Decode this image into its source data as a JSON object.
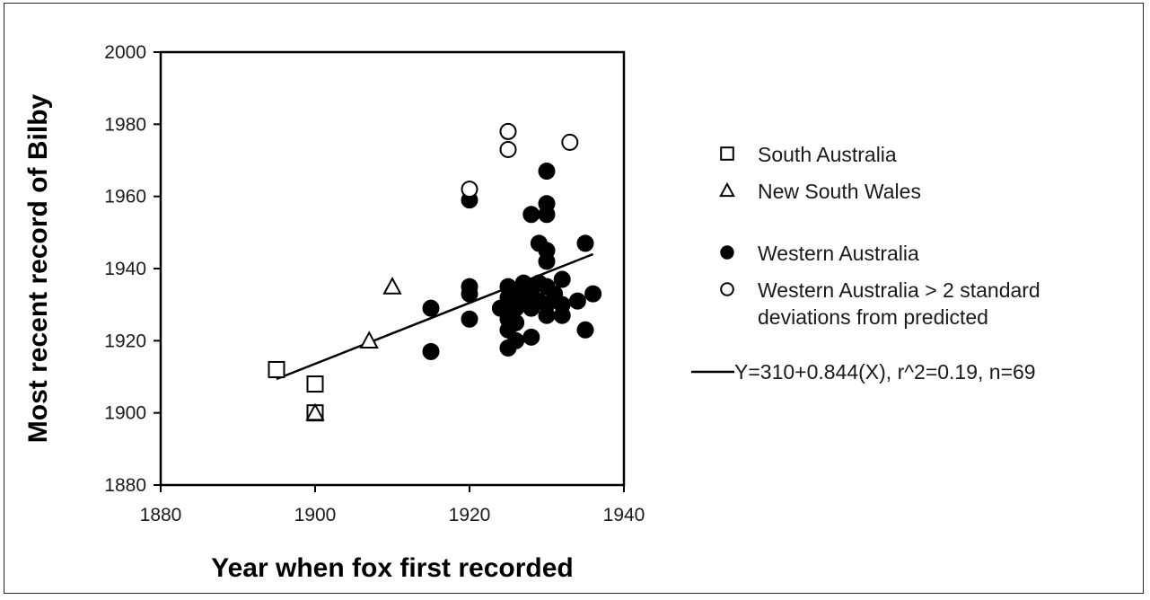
{
  "chart_data": {
    "type": "scatter",
    "xlabel": "Year when fox first recorded",
    "ylabel": "Most recent record of Bilby",
    "xlim": [
      1880,
      1940
    ],
    "ylim": [
      1880,
      2000
    ],
    "xticks": [
      "1880",
      "1900",
      "1920",
      "1940"
    ],
    "yticks": [
      "1880",
      "1900",
      "1920",
      "1940",
      "1960",
      "1980",
      "2000"
    ],
    "grid": false,
    "legend_position": "right",
    "series": [
      {
        "name": "South Australia",
        "marker": "square",
        "points": [
          [
            1895,
            1912
          ],
          [
            1900,
            1908
          ],
          [
            1900,
            1900
          ]
        ]
      },
      {
        "name": "New South Wales",
        "marker": "triangle",
        "points": [
          [
            1900,
            1900
          ],
          [
            1907,
            1920
          ],
          [
            1910,
            1935
          ]
        ]
      },
      {
        "name": "Western Australia",
        "marker": "filled-circle",
        "points": [
          [
            1915,
            1929
          ],
          [
            1915,
            1917
          ],
          [
            1920,
            1959
          ],
          [
            1920,
            1935
          ],
          [
            1920,
            1933
          ],
          [
            1920,
            1926
          ],
          [
            1924,
            1929
          ],
          [
            1925,
            1935
          ],
          [
            1925,
            1932
          ],
          [
            1925,
            1929
          ],
          [
            1925,
            1926
          ],
          [
            1925,
            1923
          ],
          [
            1925,
            1918
          ],
          [
            1926,
            1933
          ],
          [
            1926,
            1929
          ],
          [
            1926,
            1925
          ],
          [
            1926,
            1920
          ],
          [
            1927,
            1936
          ],
          [
            1927,
            1932
          ],
          [
            1928,
            1955
          ],
          [
            1928,
            1934
          ],
          [
            1928,
            1929
          ],
          [
            1928,
            1921
          ],
          [
            1929,
            1947
          ],
          [
            1929,
            1936
          ],
          [
            1929,
            1931
          ],
          [
            1930,
            1967
          ],
          [
            1930,
            1958
          ],
          [
            1930,
            1955
          ],
          [
            1930,
            1945
          ],
          [
            1930,
            1942
          ],
          [
            1930,
            1935
          ],
          [
            1930,
            1930
          ],
          [
            1930,
            1927
          ],
          [
            1931,
            1933
          ],
          [
            1932,
            1937
          ],
          [
            1932,
            1930
          ],
          [
            1932,
            1927
          ],
          [
            1934,
            1931
          ],
          [
            1935,
            1947
          ],
          [
            1935,
            1923
          ],
          [
            1936,
            1933
          ]
        ]
      },
      {
        "name": "Western Australia > 2 standard deviations from predicted",
        "legend_lines": [
          "Western Australia > 2 standard",
          "deviations from predicted"
        ],
        "marker": "open-circle",
        "points": [
          [
            1920,
            1962
          ],
          [
            1925,
            1978
          ],
          [
            1925,
            1973
          ],
          [
            1933,
            1975
          ]
        ]
      }
    ],
    "regression": {
      "label": "Y=310+0.844(X), r^2=0.19, n=69",
      "intercept": 310,
      "slope": 0.844,
      "x_range": [
        1895,
        1936
      ]
    }
  }
}
